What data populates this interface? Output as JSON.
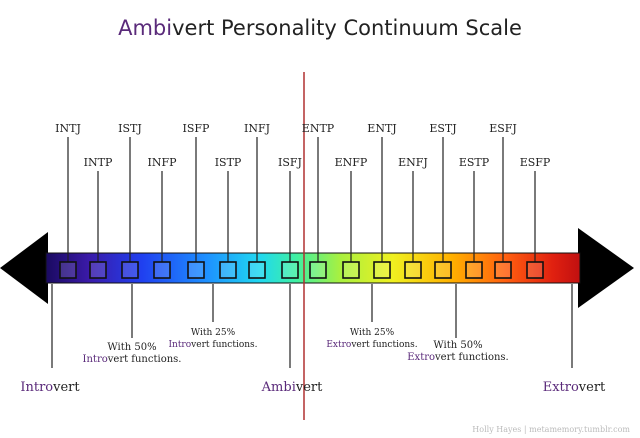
{
  "title": {
    "accent": "Ambi",
    "rest": "vert Personality Continuum Scale"
  },
  "types": [
    {
      "label": "INTJ",
      "level": "high"
    },
    {
      "label": "INTP",
      "level": "mid"
    },
    {
      "label": "ISTJ",
      "level": "high"
    },
    {
      "label": "INFP",
      "level": "mid"
    },
    {
      "label": "ISFP",
      "level": "high"
    },
    {
      "label": "ISTP",
      "level": "mid"
    },
    {
      "label": "INFJ",
      "level": "high"
    },
    {
      "label": "ISFJ",
      "level": "mid"
    },
    {
      "label": "ENTP",
      "level": "high"
    },
    {
      "label": "ENFP",
      "level": "mid"
    },
    {
      "label": "ENTJ",
      "level": "high"
    },
    {
      "label": "ENFJ",
      "level": "mid"
    },
    {
      "label": "ESTJ",
      "level": "high"
    },
    {
      "label": "ESTP",
      "level": "mid"
    },
    {
      "label": "ESFJ",
      "level": "high"
    },
    {
      "label": "ESFP",
      "level": "mid"
    }
  ],
  "annotations": [
    {
      "id": "intro50",
      "line1": "With 50%",
      "hl": "Intro",
      "rest": "vert functions."
    },
    {
      "id": "intro25",
      "line1": "With 25%",
      "hl": "Intro",
      "rest": "vert functions."
    },
    {
      "id": "extro25",
      "line1": "With 25%",
      "hl": "Extro",
      "rest": "vert functions."
    },
    {
      "id": "extro50",
      "line1": "With 50%",
      "hl": "Extro",
      "rest": "vert functions."
    }
  ],
  "endpoints": {
    "introvert": {
      "hl": "Intro",
      "rest": "vert"
    },
    "ambivert": {
      "hl": "Ambi",
      "rest": "vert"
    },
    "extrovert": {
      "hl": "Extro",
      "rest": "vert"
    }
  },
  "watermark": "Holly Hayes | metamemory.tumblr.com",
  "colors": {
    "accent": "#5a2a7a",
    "centerline": "#b03030",
    "text": "#222222"
  }
}
